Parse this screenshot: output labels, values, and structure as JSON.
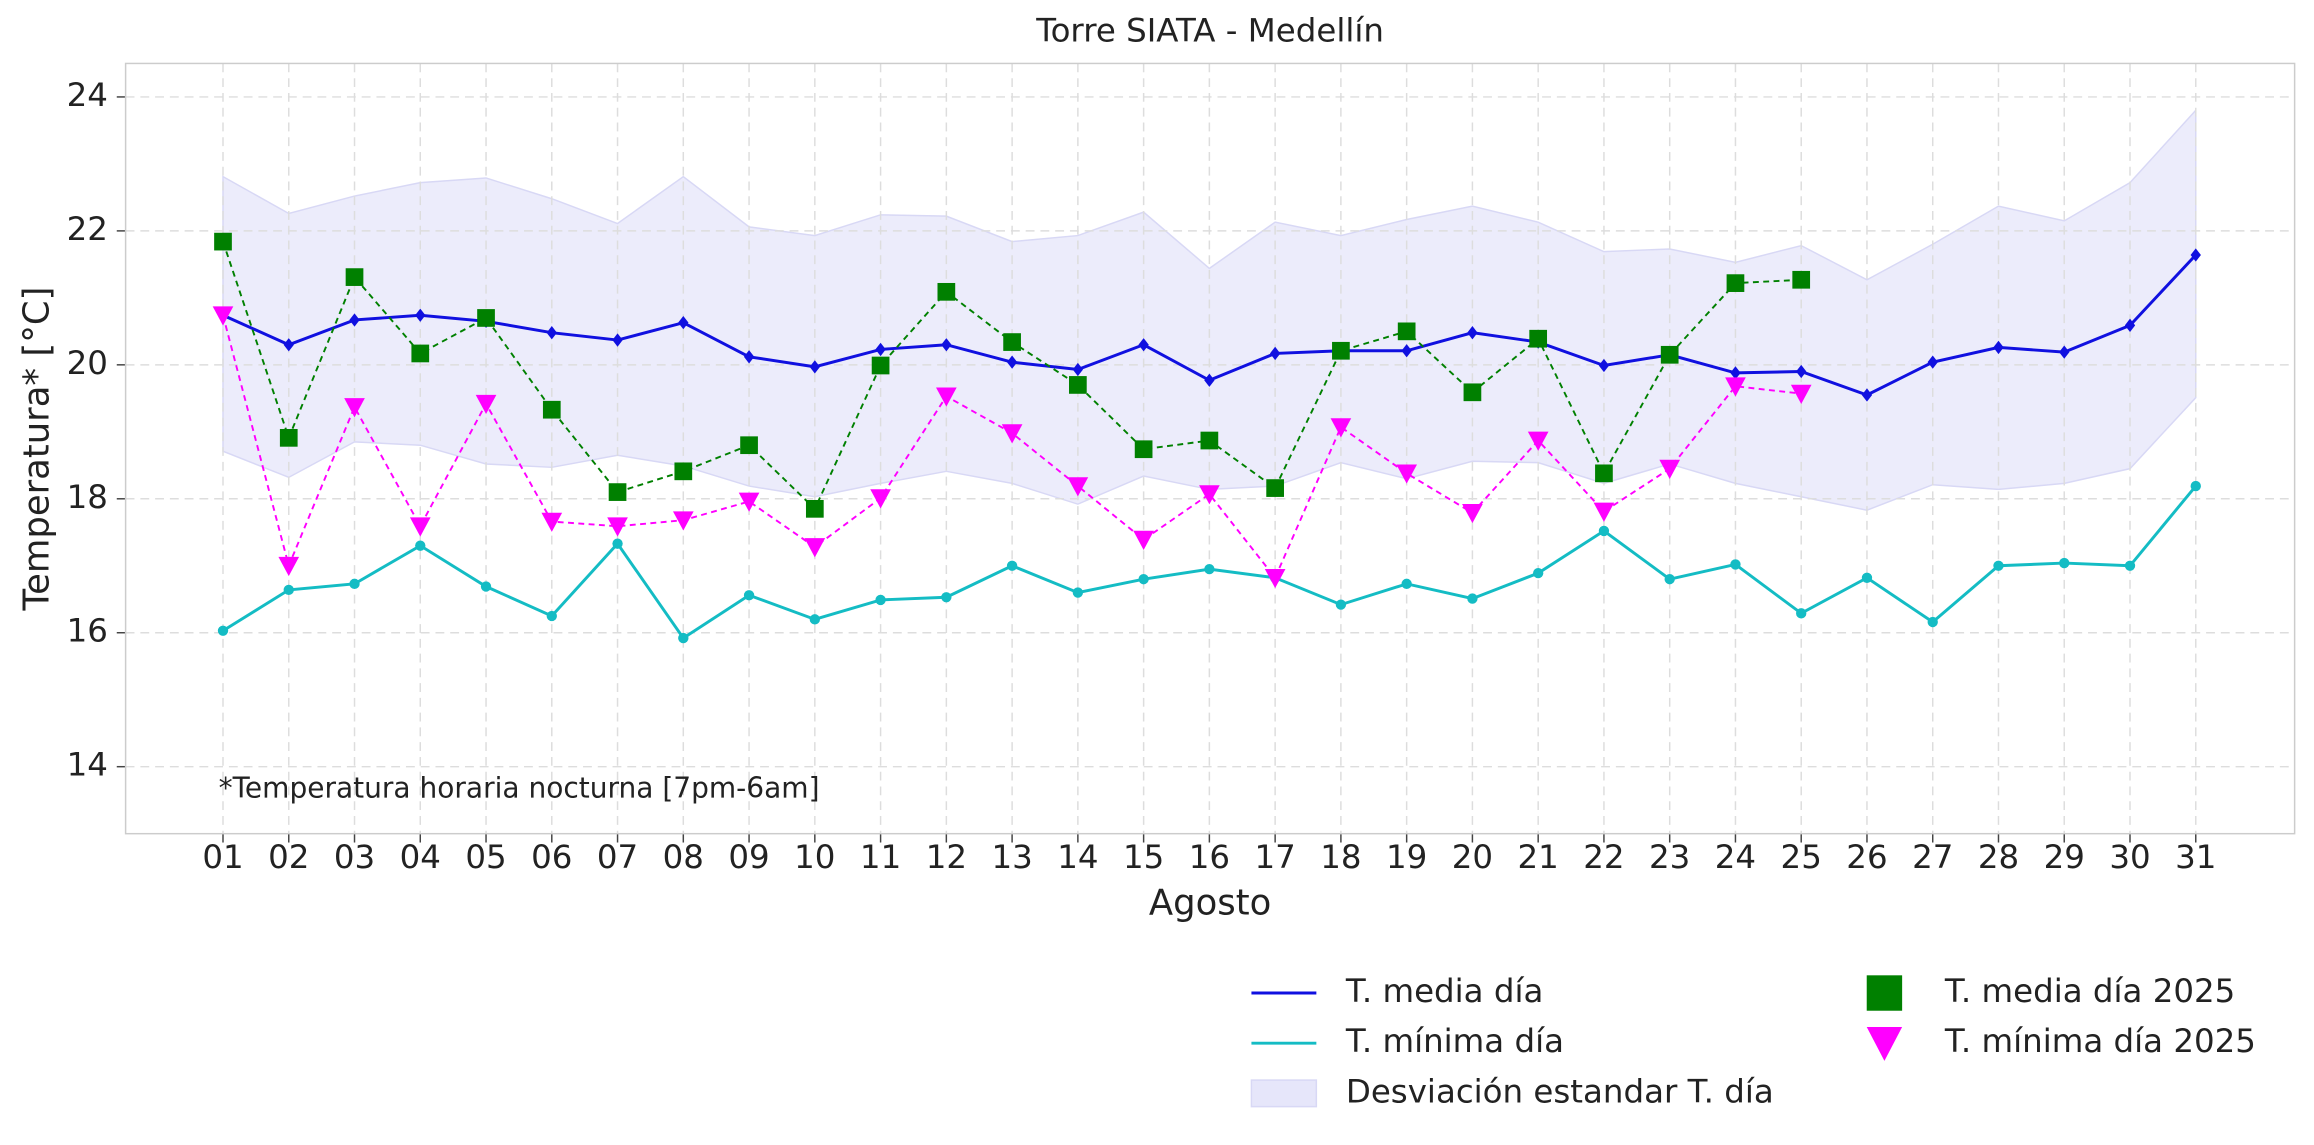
{
  "chart_data": {
    "type": "line",
    "title": "Torre SIATA - Medellín",
    "xlabel": "Agosto",
    "ylabel": "Temperatura* [°C]",
    "annotation": "*Temperatura horaria nocturna [7pm-6am]",
    "categories": [
      "01",
      "02",
      "03",
      "04",
      "05",
      "06",
      "07",
      "08",
      "09",
      "10",
      "11",
      "12",
      "13",
      "14",
      "15",
      "16",
      "17",
      "18",
      "19",
      "20",
      "21",
      "22",
      "23",
      "24",
      "25",
      "26",
      "27",
      "28",
      "29",
      "30",
      "31"
    ],
    "ylim": [
      13,
      24.5
    ],
    "yticks": [
      14,
      16,
      18,
      20,
      22,
      24
    ],
    "grid": true,
    "legend": "below right",
    "band": {
      "name": "Desviación estandar T. día",
      "color": "#e6e6fa",
      "upper": [
        22.81,
        22.26,
        22.52,
        22.72,
        22.79,
        22.48,
        22.11,
        22.81,
        22.06,
        21.93,
        22.24,
        22.22,
        21.84,
        21.93,
        22.28,
        21.44,
        22.13,
        21.93,
        22.17,
        22.37,
        22.13,
        21.69,
        21.73,
        21.53,
        21.78,
        21.27,
        21.8,
        22.37,
        22.15,
        22.72,
        23.8
      ],
      "lower": [
        18.71,
        18.32,
        18.85,
        18.8,
        18.52,
        18.47,
        18.65,
        18.49,
        18.19,
        18.03,
        18.23,
        18.41,
        18.23,
        17.92,
        18.34,
        18.14,
        18.19,
        18.54,
        18.3,
        18.56,
        18.54,
        18.23,
        18.52,
        18.23,
        18.03,
        17.83,
        18.21,
        18.14,
        18.23,
        18.45,
        19.51
      ]
    },
    "series": [
      {
        "name": "T. media día",
        "color": "#1010e0",
        "marker": "diamond",
        "dashed": false,
        "values": [
          20.74,
          20.3,
          20.67,
          20.74,
          20.65,
          20.48,
          20.37,
          20.63,
          20.12,
          19.97,
          20.23,
          20.3,
          20.04,
          19.93,
          20.3,
          19.77,
          20.17,
          20.21,
          20.21,
          20.48,
          20.34,
          19.99,
          20.15,
          19.88,
          19.9,
          19.55,
          20.04,
          20.26,
          20.19,
          20.59,
          21.64
        ]
      },
      {
        "name": "T. mínima día",
        "color": "#14bcc4",
        "marker": "circle",
        "dashed": false,
        "values": [
          16.03,
          16.64,
          16.73,
          17.3,
          16.69,
          16.25,
          17.33,
          15.92,
          16.56,
          16.2,
          16.49,
          16.53,
          17.0,
          16.6,
          16.8,
          16.95,
          16.82,
          16.42,
          16.73,
          16.51,
          16.89,
          17.52,
          16.8,
          17.02,
          16.29,
          16.82,
          16.16,
          17.0,
          17.04,
          17.0,
          18.19
        ]
      },
      {
        "name": "T. media día 2025",
        "color": "#008000",
        "marker": "square",
        "dashed": true,
        "values": [
          21.84,
          18.91,
          21.31,
          20.17,
          20.7,
          19.33,
          18.1,
          18.41,
          18.8,
          17.85,
          19.99,
          21.09,
          20.34,
          19.7,
          18.74,
          18.87,
          18.16,
          20.21,
          20.5,
          19.59,
          20.39,
          18.38,
          20.15,
          21.22,
          21.27,
          null,
          null,
          null,
          null,
          null,
          null
        ]
      },
      {
        "name": "T. mínima día 2025",
        "color": "#ff00ff",
        "marker": "triangle-down",
        "dashed": true,
        "values": [
          20.74,
          17.0,
          19.37,
          17.59,
          19.42,
          17.66,
          17.59,
          17.68,
          17.96,
          17.28,
          18.01,
          19.53,
          18.98,
          18.19,
          17.39,
          18.07,
          16.82,
          19.07,
          18.38,
          17.79,
          18.87,
          17.81,
          18.45,
          19.68,
          19.57,
          null,
          null,
          null,
          null,
          null,
          null
        ]
      }
    ]
  }
}
